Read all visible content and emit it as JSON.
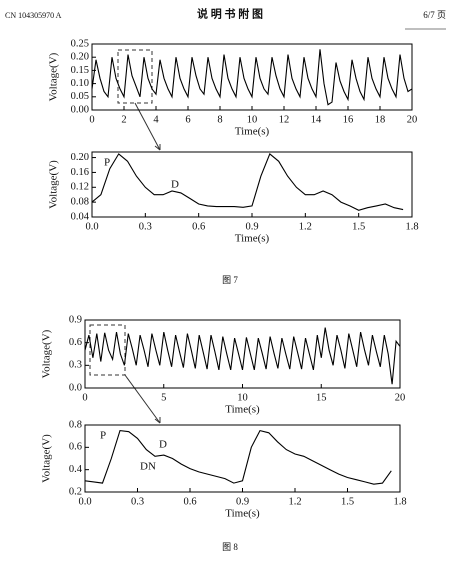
{
  "header": {
    "left": "CN 104305970 A",
    "center": "说 明 书 附 图",
    "right": "6/7 页"
  },
  "captions": [
    "图 7",
    "图 8"
  ],
  "chart_data": [
    {
      "type": "line",
      "xlabel": "Time(s)",
      "ylabel": "Voltage(V)",
      "color": "#000000",
      "x": [
        0,
        0.25,
        0.5,
        0.75,
        1,
        1.25,
        1.5,
        1.75,
        2,
        2.25,
        2.5,
        2.75,
        3,
        3.25,
        3.5,
        3.75,
        4,
        4.25,
        4.5,
        4.75,
        5,
        5.25,
        5.5,
        5.75,
        6,
        6.25,
        6.5,
        6.75,
        7,
        7.25,
        7.5,
        7.75,
        8,
        8.25,
        8.5,
        8.75,
        9,
        9.25,
        9.5,
        9.75,
        10,
        10.25,
        10.5,
        10.75,
        11,
        11.25,
        11.5,
        11.75,
        12,
        12.25,
        12.5,
        12.75,
        13,
        13.25,
        13.5,
        13.75,
        14,
        14.25,
        14.5,
        14.75,
        15,
        15.25,
        15.5,
        15.75,
        16,
        16.25,
        16.5,
        16.75,
        17,
        17.25,
        17.5,
        17.75,
        18,
        18.25,
        18.5,
        18.75,
        19,
        19.25,
        19.5,
        19.75,
        20
      ],
      "values": [
        0.08,
        0.19,
        0.12,
        0.07,
        0.05,
        0.2,
        0.12,
        0.08,
        0.05,
        0.21,
        0.13,
        0.09,
        0.05,
        0.2,
        0.12,
        0.08,
        0.06,
        0.19,
        0.12,
        0.08,
        0.05,
        0.2,
        0.12,
        0.08,
        0.05,
        0.2,
        0.13,
        0.08,
        0.06,
        0.2,
        0.12,
        0.08,
        0.05,
        0.21,
        0.12,
        0.08,
        0.05,
        0.2,
        0.12,
        0.08,
        0.05,
        0.2,
        0.12,
        0.08,
        0.06,
        0.2,
        0.13,
        0.08,
        0.05,
        0.21,
        0.12,
        0.08,
        0.05,
        0.2,
        0.12,
        0.08,
        0.05,
        0.23,
        0.1,
        0.02,
        0.03,
        0.18,
        0.11,
        0.07,
        0.04,
        0.19,
        0.12,
        0.07,
        0.04,
        0.2,
        0.12,
        0.08,
        0.05,
        0.2,
        0.12,
        0.08,
        0.05,
        0.21,
        0.12,
        0.07,
        0.08
      ],
      "xlim": [
        0,
        20
      ],
      "xticks": [
        0,
        2,
        4,
        6,
        8,
        10,
        12,
        14,
        16,
        18,
        20
      ],
      "ylim": [
        0,
        0.25
      ],
      "yticks": [
        {
          "value": 0,
          "label": "0.00"
        },
        0.05,
        {
          "value": 0.1,
          "label": "0.10"
        },
        0.15,
        {
          "value": 0.2,
          "label": "0.20"
        },
        0.25
      ]
    },
    {
      "type": "line",
      "xlabel": "Time(s)",
      "ylabel": "Voltage(V)",
      "color": "#000000",
      "annotations": [
        "P",
        "D"
      ],
      "x": [
        0,
        0.05,
        0.1,
        0.15,
        0.2,
        0.25,
        0.3,
        0.35,
        0.4,
        0.45,
        0.5,
        0.55,
        0.6,
        0.65,
        0.7,
        0.75,
        0.8,
        0.85,
        0.9,
        0.95,
        1,
        1.05,
        1.1,
        1.15,
        1.2,
        1.25,
        1.3,
        1.35,
        1.4,
        1.45,
        1.5,
        1.55,
        1.6,
        1.65,
        1.7,
        1.75
      ],
      "values": [
        0.08,
        0.1,
        0.17,
        0.21,
        0.19,
        0.15,
        0.12,
        0.1,
        0.1,
        0.11,
        0.105,
        0.09,
        0.075,
        0.07,
        0.068,
        0.068,
        0.068,
        0.066,
        0.07,
        0.15,
        0.21,
        0.19,
        0.15,
        0.12,
        0.1,
        0.1,
        0.11,
        0.1,
        0.08,
        0.07,
        0.058,
        0.065,
        0.07,
        0.075,
        0.065,
        0.06
      ],
      "xlim": [
        0,
        1.8
      ],
      "xticks": [
        {
          "value": 0,
          "label": "0.0"
        },
        0.3,
        0.6,
        0.9,
        1.2,
        1.5,
        1.8
      ],
      "ylim": [
        0.04,
        0.215
      ],
      "yticks": [
        0.04,
        0.08,
        0.12,
        0.16,
        {
          "value": 0.2,
          "label": "0.20"
        }
      ]
    },
    {
      "type": "line",
      "xlabel": "Time(s)",
      "ylabel": "Voltage(V)",
      "color": "#000000",
      "x": [
        0,
        0.25,
        0.5,
        0.75,
        1,
        1.25,
        1.5,
        1.75,
        2,
        2.25,
        2.5,
        2.75,
        3,
        3.25,
        3.5,
        3.75,
        4,
        4.25,
        4.5,
        4.75,
        5,
        5.25,
        5.5,
        5.75,
        6,
        6.25,
        6.5,
        6.75,
        7,
        7.25,
        7.5,
        7.75,
        8,
        8.25,
        8.5,
        8.75,
        9,
        9.25,
        9.5,
        9.75,
        10,
        10.25,
        10.5,
        10.75,
        11,
        11.25,
        11.5,
        11.75,
        12,
        12.25,
        12.5,
        12.75,
        13,
        13.25,
        13.5,
        13.75,
        14,
        14.25,
        14.5,
        14.75,
        15,
        15.25,
        15.5,
        15.75,
        16,
        16.25,
        16.5,
        16.75,
        17,
        17.25,
        17.5,
        17.75,
        18,
        18.25,
        18.5,
        18.75,
        19,
        19.25,
        19.5,
        19.75,
        20
      ],
      "values": [
        0.5,
        0.7,
        0.4,
        0.72,
        0.35,
        0.73,
        0.5,
        0.38,
        0.74,
        0.45,
        0.3,
        0.72,
        0.52,
        0.3,
        0.7,
        0.5,
        0.28,
        0.72,
        0.5,
        0.3,
        0.74,
        0.5,
        0.28,
        0.7,
        0.48,
        0.27,
        0.72,
        0.5,
        0.26,
        0.7,
        0.48,
        0.25,
        0.7,
        0.48,
        0.24,
        0.68,
        0.45,
        0.24,
        0.66,
        0.45,
        0.24,
        0.67,
        0.45,
        0.24,
        0.66,
        0.46,
        0.25,
        0.68,
        0.46,
        0.26,
        0.66,
        0.45,
        0.25,
        0.68,
        0.47,
        0.25,
        0.66,
        0.45,
        0.24,
        0.7,
        0.4,
        0.8,
        0.5,
        0.3,
        0.7,
        0.5,
        0.26,
        0.72,
        0.5,
        0.28,
        0.74,
        0.5,
        0.3,
        0.7,
        0.48,
        0.28,
        0.7,
        0.45,
        0.05,
        0.62,
        0.55
      ],
      "xlim": [
        0,
        20
      ],
      "xticks": [
        0,
        5,
        10,
        15,
        20
      ],
      "ylim": [
        0,
        0.9
      ],
      "yticks": [
        {
          "value": 0,
          "label": "0.0"
        },
        0.3,
        0.6,
        0.9
      ]
    },
    {
      "type": "line",
      "xlabel": "Time(s)",
      "ylabel": "Voltage(V)",
      "color": "#000000",
      "annotations": [
        "P",
        "D",
        "DN"
      ],
      "x": [
        0,
        0.05,
        0.1,
        0.15,
        0.2,
        0.25,
        0.3,
        0.35,
        0.4,
        0.45,
        0.5,
        0.55,
        0.6,
        0.65,
        0.7,
        0.75,
        0.8,
        0.85,
        0.9,
        0.95,
        1,
        1.05,
        1.1,
        1.15,
        1.2,
        1.25,
        1.3,
        1.35,
        1.4,
        1.45,
        1.5,
        1.55,
        1.6,
        1.65,
        1.7,
        1.75
      ],
      "values": [
        0.3,
        0.29,
        0.28,
        0.5,
        0.75,
        0.74,
        0.68,
        0.58,
        0.52,
        0.53,
        0.5,
        0.45,
        0.41,
        0.38,
        0.36,
        0.34,
        0.32,
        0.28,
        0.3,
        0.6,
        0.75,
        0.73,
        0.65,
        0.58,
        0.54,
        0.52,
        0.48,
        0.44,
        0.4,
        0.36,
        0.33,
        0.31,
        0.29,
        0.27,
        0.28,
        0.39
      ],
      "xlim": [
        0,
        1.8
      ],
      "xticks": [
        {
          "value": 0,
          "label": "0.0"
        },
        0.3,
        0.6,
        0.9,
        1.2,
        1.5,
        1.8
      ],
      "ylim": [
        0.2,
        0.8
      ],
      "yticks": [
        0.2,
        0.4,
        0.6,
        0.8
      ]
    }
  ]
}
